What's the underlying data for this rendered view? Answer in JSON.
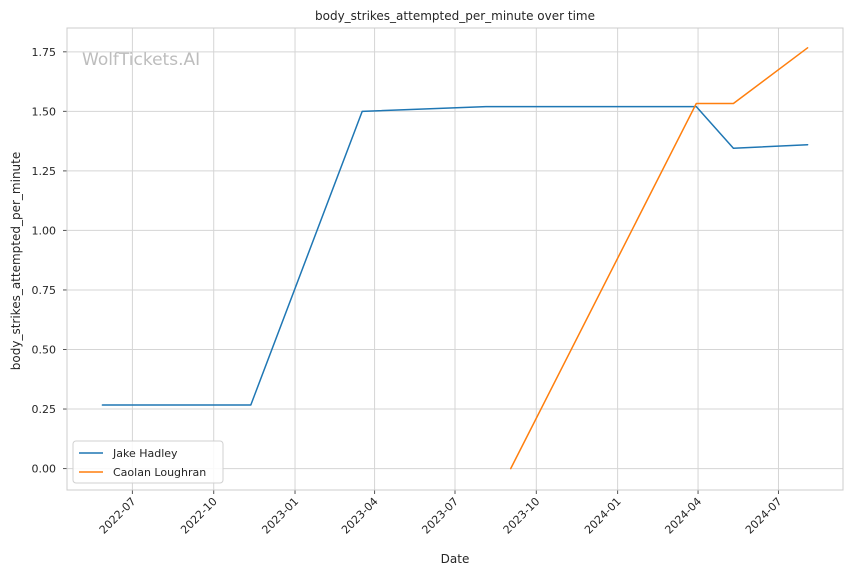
{
  "chart_data": {
    "type": "line",
    "title": "body_strikes_attempted_per_minute over time",
    "xlabel": "Date",
    "ylabel": "body_strikes_attempted_per_minute",
    "watermark": "WolfTickets.AI",
    "xlim": [
      "2022-04-18",
      "2024-09-12"
    ],
    "ylim": [
      -0.09,
      1.85
    ],
    "x_ticks": [
      "2022-07",
      "2022-10",
      "2023-01",
      "2023-04",
      "2023-07",
      "2023-10",
      "2024-01",
      "2024-04",
      "2024-07"
    ],
    "y_ticks": [
      0.0,
      0.25,
      0.5,
      0.75,
      1.0,
      1.25,
      1.5,
      1.75
    ],
    "y_tick_labels": [
      "0.00",
      "0.25",
      "0.50",
      "0.75",
      "1.00",
      "1.25",
      "1.50",
      "1.75"
    ],
    "grid": true,
    "legend_position": "lower-left",
    "series": [
      {
        "name": "Jake Hadley",
        "color": "#1f77b4",
        "points": [
          {
            "x": "2022-05-28",
            "y": 0.267
          },
          {
            "x": "2022-11-12",
            "y": 0.267
          },
          {
            "x": "2023-03-18",
            "y": 1.5
          },
          {
            "x": "2023-08-05",
            "y": 1.52
          },
          {
            "x": "2024-03-30",
            "y": 1.52
          },
          {
            "x": "2024-05-11",
            "y": 1.345
          },
          {
            "x": "2024-08-03",
            "y": 1.36
          }
        ]
      },
      {
        "name": "Caolan Loughran",
        "color": "#ff7f0e",
        "points": [
          {
            "x": "2023-09-02",
            "y": 0.0
          },
          {
            "x": "2024-03-30",
            "y": 1.533
          },
          {
            "x": "2024-05-11",
            "y": 1.533
          },
          {
            "x": "2024-08-03",
            "y": 1.767
          }
        ]
      }
    ]
  }
}
